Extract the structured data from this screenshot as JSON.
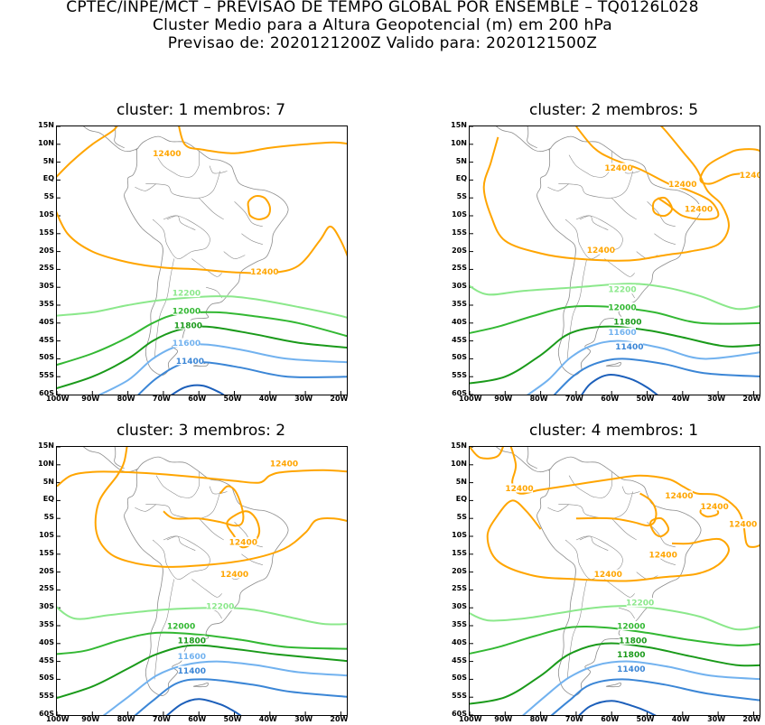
{
  "header": {
    "line1": "CPTEC/INPE/MCT – PREVISAO DE TEMPO GLOBAL POR ENSEMBLE – TQ0126L028",
    "line2": "Cluster Medio para a Altura Geopotencial (m) em 200 hPa",
    "line3": "Previsao de: 2020121200Z   Valido para: 2020121500Z"
  },
  "colors": {
    "c12400": "#ffa500",
    "c12200": "#8be88b",
    "c12000": "#33b833",
    "c11800": "#1a9a1a",
    "c11600": "#72b2ef",
    "c11400": "#3b86d6",
    "c11200": "#1c5fba",
    "coast": "#8c8c8c"
  },
  "axes": {
    "lat_labels": [
      "15N",
      "10N",
      "5N",
      "EQ",
      "5S",
      "10S",
      "15S",
      "20S",
      "25S",
      "30S",
      "35S",
      "40S",
      "45S",
      "50S",
      "55S",
      "60S"
    ],
    "lon_labels": [
      "100W",
      "90W",
      "80W",
      "70W",
      "60W",
      "50W",
      "40W",
      "30W",
      "20W"
    ]
  },
  "panels": [
    {
      "title": "cluster: 1   membros: 7",
      "labels": [
        {
          "text": "12400",
          "key": "c12400"
        },
        {
          "text": "12400",
          "key": "c12400"
        },
        {
          "text": "12200",
          "key": "c12200"
        },
        {
          "text": "12000",
          "key": "c12000"
        },
        {
          "text": "11800",
          "key": "c11800"
        },
        {
          "text": "11600",
          "key": "c11600"
        },
        {
          "text": "11400",
          "key": "c11400"
        }
      ]
    },
    {
      "title": "cluster: 2   membros: 5",
      "labels": [
        {
          "text": "12400",
          "key": "c12400"
        },
        {
          "text": "12400",
          "key": "c12400"
        },
        {
          "text": "12400",
          "key": "c12400"
        },
        {
          "text": "12400",
          "key": "c12400"
        },
        {
          "text": "12400",
          "key": "c12400"
        },
        {
          "text": "12200",
          "key": "c12200"
        },
        {
          "text": "12000",
          "key": "c12000"
        },
        {
          "text": "11800",
          "key": "c11800"
        },
        {
          "text": "11600",
          "key": "c11600"
        },
        {
          "text": "11400",
          "key": "c11400"
        }
      ]
    },
    {
      "title": "cluster: 3   membros: 2",
      "labels": [
        {
          "text": "12400",
          "key": "c12400"
        },
        {
          "text": "12400",
          "key": "c12400"
        },
        {
          "text": "12400",
          "key": "c12400"
        },
        {
          "text": "12200",
          "key": "c12200"
        },
        {
          "text": "12000",
          "key": "c12000"
        },
        {
          "text": "11800",
          "key": "c11800"
        },
        {
          "text": "11600",
          "key": "c11600"
        },
        {
          "text": "11400",
          "key": "c11400"
        }
      ]
    },
    {
      "title": "cluster: 4   membros: 1",
      "labels": [
        {
          "text": "12400",
          "key": "c12400"
        },
        {
          "text": "12400",
          "key": "c12400"
        },
        {
          "text": "12400",
          "key": "c12400"
        },
        {
          "text": "12400",
          "key": "c12400"
        },
        {
          "text": "12400",
          "key": "c12400"
        },
        {
          "text": "12400",
          "key": "c12400"
        },
        {
          "text": "12200",
          "key": "c12200"
        },
        {
          "text": "12000",
          "key": "c12000"
        },
        {
          "text": "11800",
          "key": "c11800"
        },
        {
          "text": "11800",
          "key": "c11800"
        },
        {
          "text": "11400",
          "key": "c11400"
        }
      ]
    }
  ]
}
